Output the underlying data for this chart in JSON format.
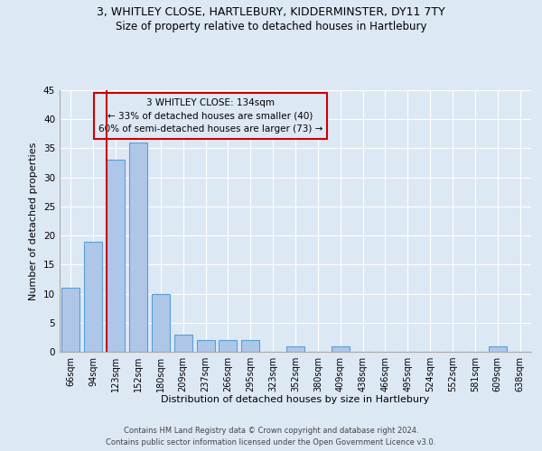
{
  "title1": "3, WHITLEY CLOSE, HARTLEBURY, KIDDERMINSTER, DY11 7TY",
  "title2": "Size of property relative to detached houses in Hartlebury",
  "xlabel": "Distribution of detached houses by size in Hartlebury",
  "ylabel": "Number of detached properties",
  "categories": [
    "66sqm",
    "94sqm",
    "123sqm",
    "152sqm",
    "180sqm",
    "209sqm",
    "237sqm",
    "266sqm",
    "295sqm",
    "323sqm",
    "352sqm",
    "380sqm",
    "409sqm",
    "438sqm",
    "466sqm",
    "495sqm",
    "524sqm",
    "552sqm",
    "581sqm",
    "609sqm",
    "638sqm"
  ],
  "values": [
    11,
    19,
    33,
    36,
    10,
    3,
    2,
    2,
    2,
    0,
    1,
    0,
    1,
    0,
    0,
    0,
    0,
    0,
    0,
    1,
    0
  ],
  "bar_color": "#aec6e8",
  "bar_edge_color": "#5a9fd4",
  "marker_color": "#cc0000",
  "marker_bin_index": 2,
  "ylim": [
    0,
    45
  ],
  "yticks": [
    0,
    5,
    10,
    15,
    20,
    25,
    30,
    35,
    40,
    45
  ],
  "annotation_line1": "3 WHITLEY CLOSE: 134sqm",
  "annotation_line2": "← 33% of detached houses are smaller (40)",
  "annotation_line3": "60% of semi-detached houses are larger (73) →",
  "annotation_box_color": "#cc0000",
  "footer1": "Contains HM Land Registry data © Crown copyright and database right 2024.",
  "footer2": "Contains public sector information licensed under the Open Government Licence v3.0.",
  "background_color": "#dde8f5",
  "grid_color": "#ffffff"
}
